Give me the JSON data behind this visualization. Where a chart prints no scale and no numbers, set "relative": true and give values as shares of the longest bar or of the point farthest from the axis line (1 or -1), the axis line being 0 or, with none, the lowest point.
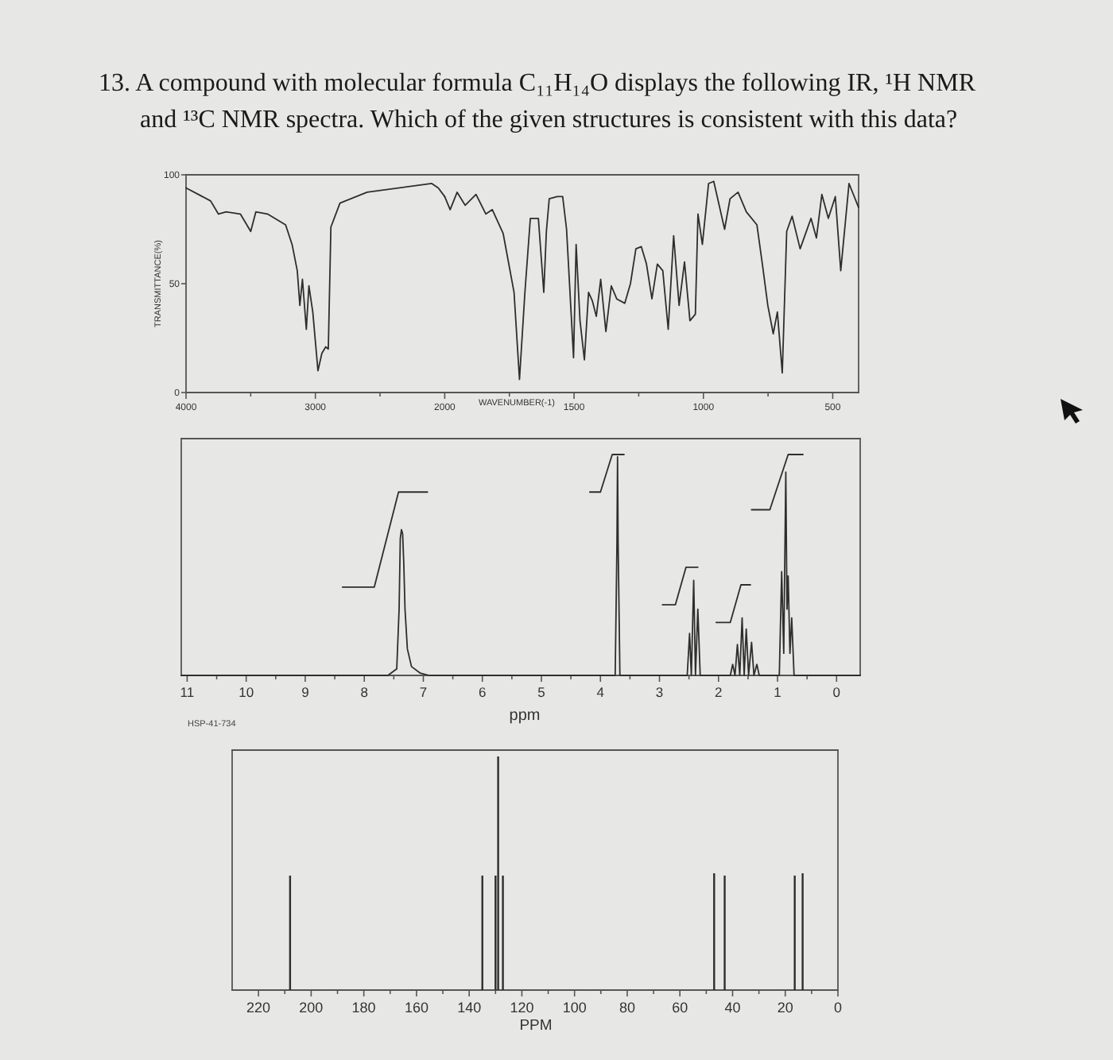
{
  "chart_data": [
    {
      "type": "line",
      "title": "13. A compound with molecular formula C₁₁H₁₄O displays the following IR, ¹H NMR and ¹³C NMR spectra. Which of the given structures is consistent with this data?",
      "ylabel": "TRANSMITTANCE(%)",
      "color": "#2e2e2e",
      "x": [
        4000,
        3810,
        3750,
        3690,
        3580,
        3500,
        3460,
        3370,
        3230,
        3180,
        3140,
        3120,
        3100,
        3070,
        3050,
        3020,
        2980,
        2950,
        2920,
        2900,
        2880,
        2810,
        2600,
        2100,
        2050,
        2000
      ],
      "values": [
        94,
        88,
        82,
        83,
        82,
        74,
        83,
        82,
        77,
        68,
        56,
        40,
        52,
        29,
        49,
        37,
        10,
        18,
        21,
        20,
        76,
        87,
        92,
        96,
        94,
        90
      ],
      "xlim": [
        4000,
        2000
      ],
      "ylim": [
        0,
        100
      ],
      "xticks": [
        4000,
        {
          "value": 3500,
          "label": null
        },
        3000,
        {
          "value": 2500,
          "label": null
        },
        2000
      ],
      "yticks": [
        0,
        50,
        100
      ]
    },
    {
      "type": "line",
      "xlabel": "WAVENUMBER(-1)",
      "color": "#2e2e2e",
      "x": [
        2000,
        1979,
        1952,
        1921,
        1879,
        1841,
        1816,
        1774,
        1732,
        1711,
        1690,
        1669,
        1638,
        1617,
        1607,
        1596,
        1565,
        1544,
        1529,
        1502,
        1492,
        1477,
        1460,
        1444,
        1429,
        1414,
        1397,
        1377,
        1356,
        1335,
        1304,
        1282,
        1261,
        1240,
        1220,
        1199,
        1178,
        1157,
        1136,
        1115,
        1094,
        1073,
        1052,
        1031,
        1021,
        1004,
        980,
        960,
        918,
        897,
        866,
        834,
        793,
        772,
        751,
        730,
        714,
        695,
        678,
        657,
        626,
        584,
        563,
        542,
        517,
        490,
        469,
        437,
        400
      ],
      "values": [
        90,
        84,
        92,
        86,
        91,
        82,
        84,
        73,
        46,
        6,
        46,
        80,
        80,
        46,
        74,
        89,
        90,
        90,
        75,
        16,
        68,
        33,
        15,
        46,
        42,
        35,
        52,
        28,
        49,
        43,
        41,
        50,
        66,
        67,
        59,
        43,
        59,
        56,
        29,
        72,
        40,
        60,
        33,
        36,
        82,
        68,
        96,
        97,
        75,
        89,
        92,
        83,
        77,
        59,
        40,
        27,
        37,
        9,
        74,
        81,
        66,
        80,
        71,
        91,
        80,
        90,
        56,
        96,
        85
      ],
      "xlim": [
        2000,
        400
      ],
      "ylim": [
        0,
        100
      ],
      "xticks": [
        {
          "value": 1750,
          "label": null
        },
        1500,
        {
          "value": 1250,
          "label": null
        },
        1000,
        {
          "value": 750,
          "label": null
        },
        500
      ]
    },
    {
      "type": "line",
      "xlabel": "ppm",
      "relative": true,
      "annotations": [
        "HSP-41-734"
      ],
      "xlim": [
        11.1,
        -0.4
      ],
      "xticks": [
        11,
        {
          "value": 10.5,
          "label": null
        },
        10,
        {
          "value": 9.5,
          "label": null
        },
        9,
        {
          "value": 8.5,
          "label": null
        },
        8,
        {
          "value": 7.5,
          "label": null
        },
        7,
        {
          "value": 6.5,
          "label": null
        },
        6,
        {
          "value": 5.5,
          "label": null
        },
        5,
        {
          "value": 4.5,
          "label": null
        },
        4,
        {
          "value": 3.5,
          "label": null
        },
        3,
        {
          "value": 2.5,
          "label": null
        },
        2,
        {
          "value": 1.5,
          "label": null
        },
        1,
        {
          "value": 0.5,
          "label": null
        },
        0
      ],
      "series": [
        {
          "color": "#2e2e2e",
          "x": [
            11.1,
            7.6,
            7.45,
            7.41,
            7.39,
            7.37,
            7.35,
            7.33,
            7.31,
            7.27,
            7.2,
            7.05,
            6.9,
            3.75,
            3.72,
            3.71,
            3.7,
            3.67,
            2.53,
            2.49,
            2.46,
            2.42,
            2.39,
            2.35,
            2.31,
            1.8,
            1.76,
            1.72,
            1.68,
            1.64,
            1.6,
            1.565,
            1.53,
            1.49,
            1.44,
            1.4,
            1.35,
            1.31,
            0.97,
            0.93,
            0.895,
            0.86,
            0.84,
            0.82,
            0.79,
            0.76,
            0.72,
            -0.4
          ],
          "values": [
            0,
            0,
            0.03,
            0.3,
            0.62,
            0.66,
            0.64,
            0.5,
            0.3,
            0.12,
            0.04,
            0.01,
            0,
            0,
            0.6,
            0.99,
            0.6,
            0,
            0,
            0.19,
            0,
            0.43,
            0,
            0.3,
            0,
            0,
            0.05,
            0,
            0.14,
            0,
            0.26,
            0,
            0.21,
            0,
            0.15,
            0,
            0.05,
            0,
            0,
            0.47,
            0.1,
            0.92,
            0.3,
            0.45,
            0.1,
            0.26,
            0,
            0
          ]
        },
        {
          "color": "#2e2e2e",
          "x": [
            8.37,
            7.83,
            7.42,
            6.93
          ],
          "values": [
            0.4,
            0.4,
            0.83,
            0.83
          ]
        },
        {
          "color": "#2e2e2e",
          "x": [
            4.18,
            4.0,
            3.8,
            3.6
          ],
          "values": [
            0.83,
            0.83,
            1.0,
            1.0
          ]
        },
        {
          "color": "#2e2e2e",
          "x": [
            2.95,
            2.73,
            2.55,
            2.35
          ],
          "values": [
            0.32,
            0.32,
            0.49,
            0.49
          ]
        },
        {
          "color": "#2e2e2e",
          "x": [
            2.04,
            1.8,
            1.62,
            1.46
          ],
          "values": [
            0.24,
            0.24,
            0.41,
            0.41
          ]
        },
        {
          "color": "#2e2e2e",
          "x": [
            1.44,
            1.13,
            0.82,
            0.57
          ],
          "values": [
            0.75,
            0.75,
            1.0,
            1.0
          ]
        }
      ]
    },
    {
      "type": "bar",
      "xlabel": "PPM",
      "relative": true,
      "color": "#2e2e2e",
      "xlim": [
        230,
        0
      ],
      "xticks": [
        220,
        {
          "value": 210,
          "label": null
        },
        200,
        {
          "value": 190,
          "label": null
        },
        180,
        {
          "value": 170,
          "label": null
        },
        160,
        {
          "value": 150,
          "label": null
        },
        140,
        {
          "value": 130,
          "label": null
        },
        120,
        {
          "value": 110,
          "label": null
        },
        100,
        {
          "value": 90,
          "label": null
        },
        80,
        {
          "value": 70,
          "label": null
        },
        60,
        {
          "value": 50,
          "label": null
        },
        40,
        {
          "value": 30,
          "label": null
        },
        20,
        {
          "value": 10,
          "label": null
        },
        0
      ],
      "x": [
        208,
        135,
        130,
        129,
        127.2,
        47,
        43,
        16.4,
        13.4
      ],
      "values": [
        0.49,
        0.49,
        0.49,
        1,
        0.49,
        0.5,
        0.49,
        0.49,
        0.5
      ]
    }
  ]
}
